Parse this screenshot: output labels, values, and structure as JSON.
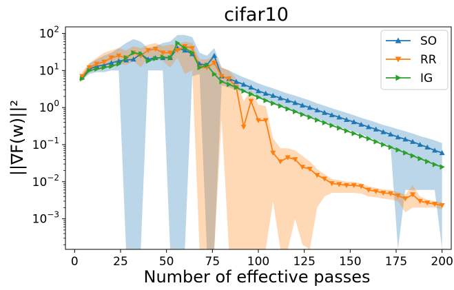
{
  "chart_data": {
    "type": "line",
    "title": "cifar10",
    "xlabel": "Number of effective passes",
    "ylabel": "||∇F(w)||²",
    "xlim": [
      -5,
      205
    ],
    "ylim": [
      0.00015,
      150
    ],
    "yscale": "log",
    "grid": false,
    "legend_position": "top-right",
    "x_ticks": [
      {
        "value": 0,
        "label": "0"
      },
      {
        "value": 25,
        "label": "25"
      },
      {
        "value": 50,
        "label": "50"
      },
      {
        "value": 75,
        "label": "75"
      },
      {
        "value": 100,
        "label": "100"
      },
      {
        "value": 125,
        "label": "125"
      },
      {
        "value": 150,
        "label": "150"
      },
      {
        "value": 175,
        "label": "175"
      },
      {
        "value": 200,
        "label": "200"
      }
    ],
    "y_ticks": [
      {
        "value": 0.001,
        "base": "10",
        "exp": "−3"
      },
      {
        "value": 0.01,
        "base": "10",
        "exp": "−2"
      },
      {
        "value": 0.1,
        "base": "10",
        "exp": "−1"
      },
      {
        "value": 1,
        "base": "10",
        "exp": "0"
      },
      {
        "value": 10,
        "base": "10",
        "exp": "1"
      },
      {
        "value": 100,
        "base": "10",
        "exp": "2"
      }
    ],
    "x": [
      4,
      8,
      12,
      16,
      20,
      24,
      28,
      32,
      36,
      40,
      44,
      48,
      52,
      56,
      60,
      64,
      68,
      72,
      76,
      80,
      84,
      88,
      92,
      96,
      100,
      104,
      108,
      112,
      116,
      120,
      124,
      128,
      132,
      136,
      140,
      144,
      148,
      152,
      156,
      160,
      164,
      168,
      172,
      176,
      180,
      184,
      188,
      192,
      196,
      200
    ],
    "series": [
      {
        "name": "SO",
        "color": "#1f77b4",
        "marker": "triangle-up",
        "values": [
          6.5,
          11,
          13,
          14,
          16,
          18,
          19,
          20,
          28,
          20,
          22,
          22,
          22,
          40,
          35,
          28,
          15,
          14,
          25,
          7,
          6,
          5,
          4.2,
          3.5,
          2.8,
          2.4,
          2.1,
          1.8,
          1.55,
          1.35,
          1.15,
          1.0,
          0.85,
          0.73,
          0.63,
          0.55,
          0.47,
          0.41,
          0.35,
          0.3,
          0.26,
          0.22,
          0.19,
          0.16,
          0.14,
          0.12,
          0.1,
          0.085,
          0.07,
          0.06
        ],
        "band_upper": [
          7.5,
          15,
          20,
          25,
          30,
          40,
          55,
          70,
          60,
          40,
          45,
          55,
          60,
          90,
          90,
          80,
          30,
          25,
          40,
          12,
          10,
          8,
          6.5,
          5.5,
          4.5,
          3.8,
          3.3,
          2.8,
          2.4,
          2.1,
          1.8,
          1.55,
          1.3,
          1.12,
          0.96,
          0.83,
          0.72,
          0.62,
          0.53,
          0.46,
          0.4,
          0.34,
          0.3,
          0.26,
          0.23,
          0.2,
          0.17,
          0.15,
          0.13,
          0.11
        ],
        "band_lower": [
          5.5,
          8,
          9,
          9,
          10,
          10,
          0.0001,
          0.0001,
          0.0001,
          10,
          10,
          10,
          0.0001,
          0.0001,
          0.0001,
          7,
          8,
          0.0001,
          0.0001,
          4,
          3.5,
          3,
          2.6,
          2.2,
          1.8,
          1.5,
          1.3,
          1.1,
          0.95,
          0.8,
          0.68,
          0.58,
          0.49,
          0.42,
          0.36,
          0.3,
          0.26,
          0.22,
          0.19,
          0.16,
          0.13,
          0.11,
          0.09,
          0.0001,
          0.006,
          0.006,
          0.006,
          0.006,
          0.006,
          0.0001
        ]
      },
      {
        "name": "RR",
        "color": "#ff7f0e",
        "marker": "triangle-down",
        "values": [
          7,
          12,
          15,
          17,
          22,
          25,
          22,
          30,
          25,
          35,
          38,
          30,
          30,
          35,
          45,
          40,
          12,
          12,
          16,
          7,
          6,
          3.5,
          0.3,
          1.5,
          0.45,
          0.45,
          0.06,
          0.035,
          0.045,
          0.04,
          0.025,
          0.022,
          0.015,
          0.012,
          0.009,
          0.0085,
          0.008,
          0.008,
          0.0075,
          0.006,
          0.0055,
          0.005,
          0.0048,
          0.0042,
          0.0035,
          0.0045,
          0.003,
          0.0027,
          0.0025,
          0.0023
        ],
        "band_upper": [
          9,
          16,
          22,
          30,
          35,
          40,
          35,
          45,
          40,
          50,
          55,
          45,
          50,
          50,
          60,
          55,
          20,
          20,
          25,
          12,
          10,
          6,
          1.5,
          3,
          1.2,
          1.1,
          0.15,
          0.08,
          0.08,
          0.07,
          0.05,
          0.035,
          0.022,
          0.016,
          0.012,
          0.011,
          0.01,
          0.01,
          0.009,
          0.0075,
          0.0068,
          0.0062,
          0.006,
          0.0052,
          0.0045,
          0.008,
          0.004,
          0.0033,
          0.003,
          0.0028
        ],
        "band_lower": [
          5,
          9,
          10,
          11,
          14,
          15,
          14,
          18,
          12,
          22,
          22,
          18,
          12,
          22,
          8,
          10,
          0.0001,
          0.0001,
          0.0001,
          0.5,
          0.0001,
          0.0001,
          0.0001,
          0.0001,
          0.0001,
          0.0001,
          0.003,
          0.0001,
          0.0001,
          0.001,
          0.0002,
          0.0001,
          0.002,
          0.004,
          0.005,
          0.005,
          0.005,
          0.005,
          0.0048,
          0.004,
          0.0038,
          0.0035,
          0.0033,
          0.003,
          0.0015,
          0.002,
          0.002,
          0.002,
          0.002,
          0.0018
        ]
      },
      {
        "name": "IG",
        "color": "#2ca02c",
        "marker": "triangle-right",
        "values": [
          6,
          10,
          11,
          12,
          13,
          15,
          22,
          30,
          28,
          18,
          21,
          23,
          22,
          55,
          40,
          30,
          12,
          14,
          8,
          5,
          4.2,
          3.5,
          2.8,
          2.3,
          1.9,
          1.55,
          1.3,
          1.1,
          0.92,
          0.78,
          0.65,
          0.55,
          0.46,
          0.39,
          0.33,
          0.28,
          0.235,
          0.2,
          0.17,
          0.145,
          0.12,
          0.1,
          0.085,
          0.072,
          0.06,
          0.05,
          0.042,
          0.035,
          0.029,
          0.025
        ]
      }
    ]
  }
}
